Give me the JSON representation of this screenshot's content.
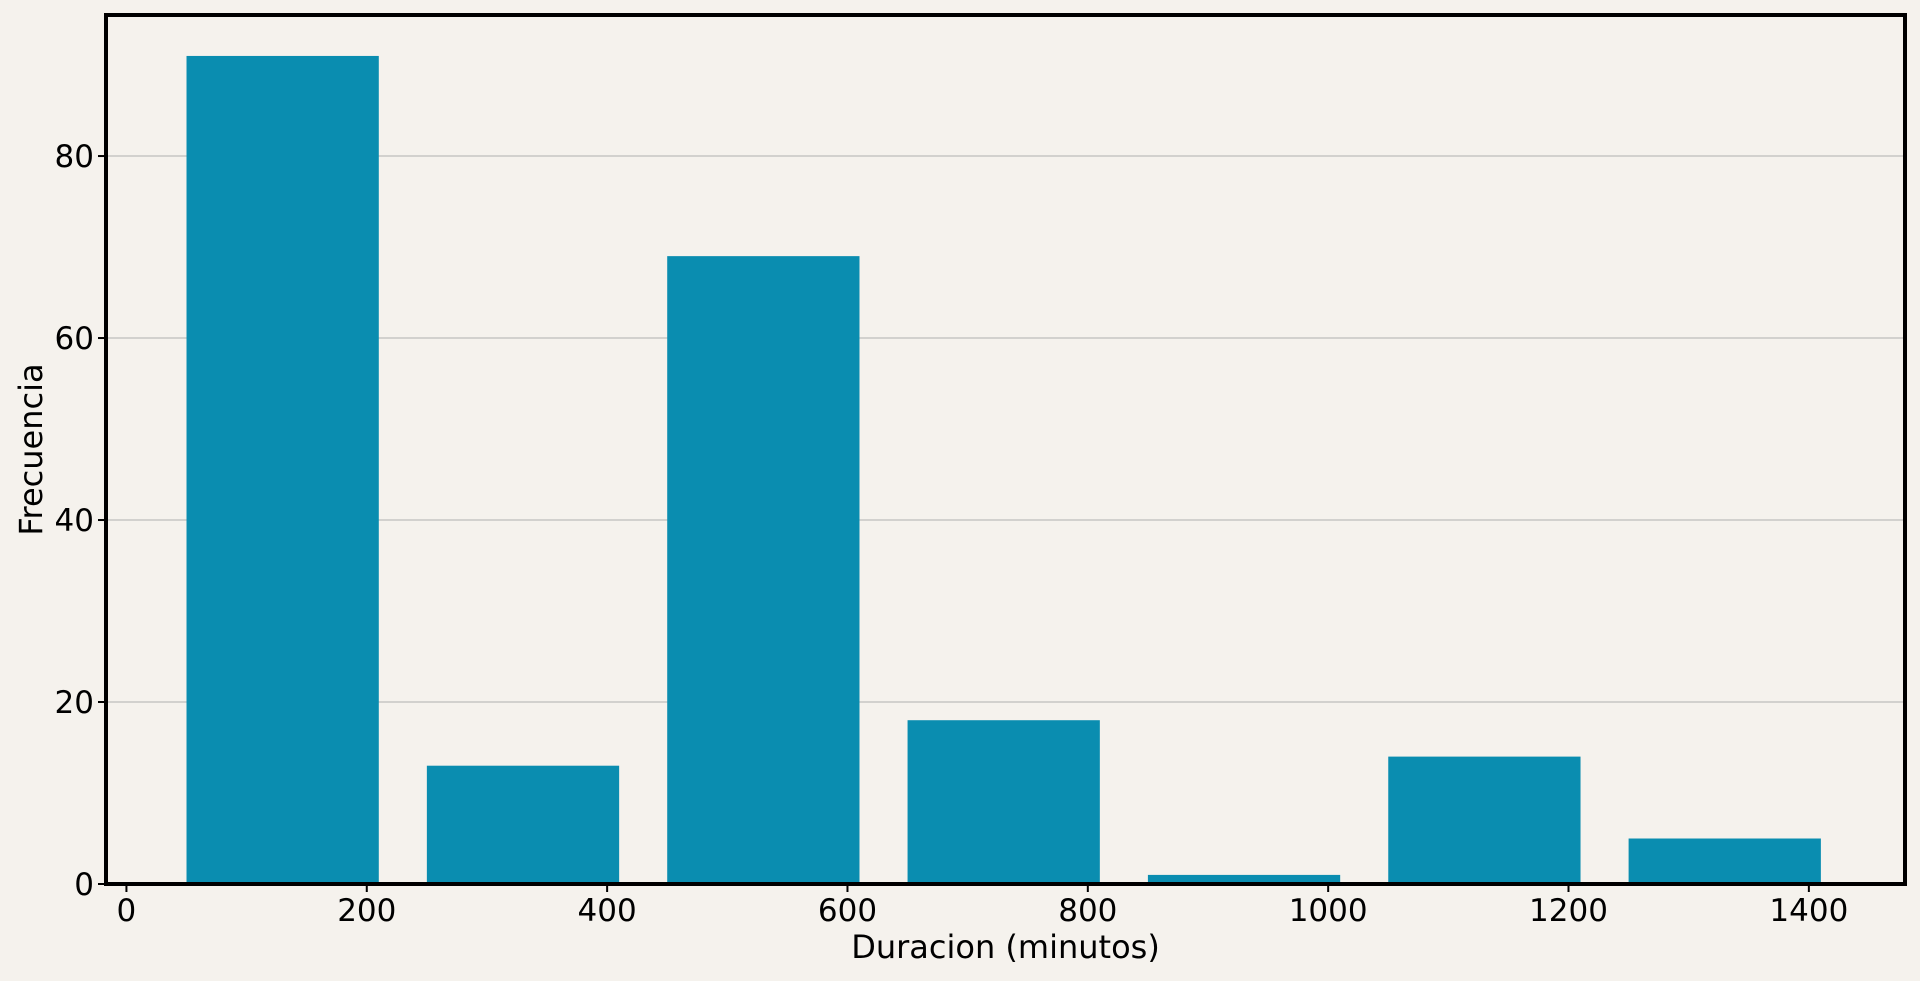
{
  "chart_data": {
    "type": "bar",
    "title": "",
    "xlabel": "Duracion (minutos)",
    "ylabel": "Frecuencia",
    "x": [
      130,
      330,
      530,
      730,
      930,
      1130,
      1330
    ],
    "bar_width": 160,
    "values": [
      91,
      13,
      69,
      18,
      1,
      14,
      5
    ],
    "xlim": [
      -17,
      1480
    ],
    "ylim": [
      0,
      95.5
    ],
    "xticks": [
      0,
      200,
      400,
      600,
      800,
      1000,
      1200,
      1400
    ],
    "xtick_labels": [
      "0",
      "200",
      "400",
      "600",
      "800",
      "1000",
      "1200",
      "1400"
    ],
    "yticks": [
      0,
      20,
      40,
      60,
      80
    ],
    "ytick_labels": [
      "0",
      "20",
      "40",
      "60",
      "80"
    ],
    "grid": "y",
    "legend": "none",
    "colors": {
      "bar": "#0a8db0",
      "background": "#f5f2ed",
      "grid": "#b0b0b0",
      "axis": "#000000"
    }
  }
}
